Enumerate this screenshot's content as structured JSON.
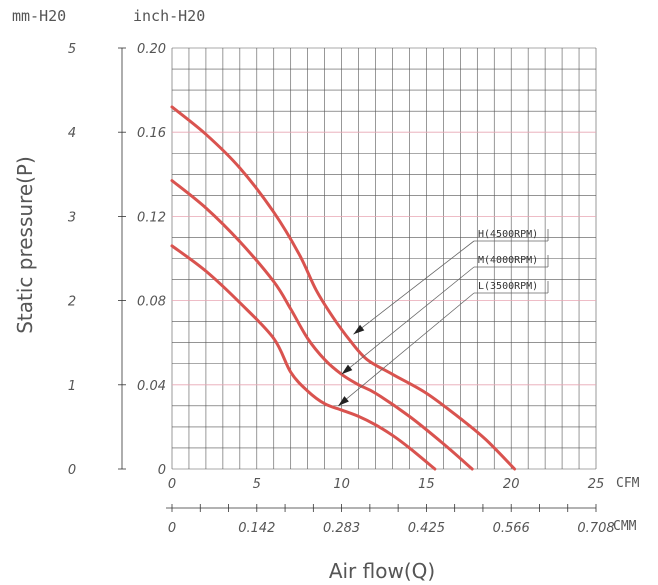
{
  "header": {
    "mm_unit": "mm-H20",
    "inch_unit": "inch-H20"
  },
  "chart_data": {
    "type": "line",
    "ylabel": "Static pressure(P)",
    "xlabel": "Air flow(Q)",
    "y_mm_ticks": [
      "5",
      "4",
      "3",
      "2",
      "1",
      "0"
    ],
    "y_inch_ticks": [
      "0.20",
      "0.16",
      "0.12",
      "0.08",
      "0.04",
      "0"
    ],
    "x_cfm_ticks": [
      "0",
      "5",
      "10",
      "15",
      "20",
      "25"
    ],
    "x_cfm_unit": "CFM",
    "x_cmm_ticks": [
      "0",
      "0.142",
      "0.283",
      "0.425",
      "0.566",
      "0.708"
    ],
    "x_cmm_unit": "CMM",
    "xlim": [
      0,
      25
    ],
    "ylim_inch": [
      0,
      0.2
    ],
    "series": [
      {
        "name": "H(4500RPM)",
        "color": "#d9534f",
        "x": [
          0,
          2,
          4,
          6,
          7.5,
          8.5,
          9.5,
          10.5,
          11.5,
          13,
          15,
          17,
          18.5,
          20.2
        ],
        "y": [
          0.172,
          0.159,
          0.143,
          0.122,
          0.102,
          0.085,
          0.072,
          0.061,
          0.052,
          0.045,
          0.036,
          0.024,
          0.014,
          0
        ]
      },
      {
        "name": "M(4000RPM)",
        "color": "#d9534f",
        "x": [
          0,
          2,
          4,
          6,
          7,
          8,
          9,
          10,
          11,
          12,
          14,
          16,
          17.7
        ],
        "y": [
          0.137,
          0.124,
          0.108,
          0.089,
          0.076,
          0.062,
          0.052,
          0.045,
          0.04,
          0.036,
          0.025,
          0.012,
          0
        ]
      },
      {
        "name": "L(3500RPM)",
        "color": "#d9534f",
        "x": [
          0,
          2,
          4,
          6,
          7,
          8,
          9,
          10,
          11,
          12,
          13,
          14,
          15.5
        ],
        "y": [
          0.106,
          0.094,
          0.079,
          0.062,
          0.046,
          0.037,
          0.031,
          0.028,
          0.025,
          0.021,
          0.016,
          0.01,
          0
        ]
      }
    ],
    "callouts": [
      {
        "series": "H(4500RPM)",
        "arrow_at": [
          10.7,
          0.064
        ]
      },
      {
        "series": "M(4000RPM)",
        "arrow_at": [
          10.0,
          0.045
        ]
      },
      {
        "series": "L(3500RPM)",
        "arrow_at": [
          9.8,
          0.03
        ]
      }
    ]
  }
}
